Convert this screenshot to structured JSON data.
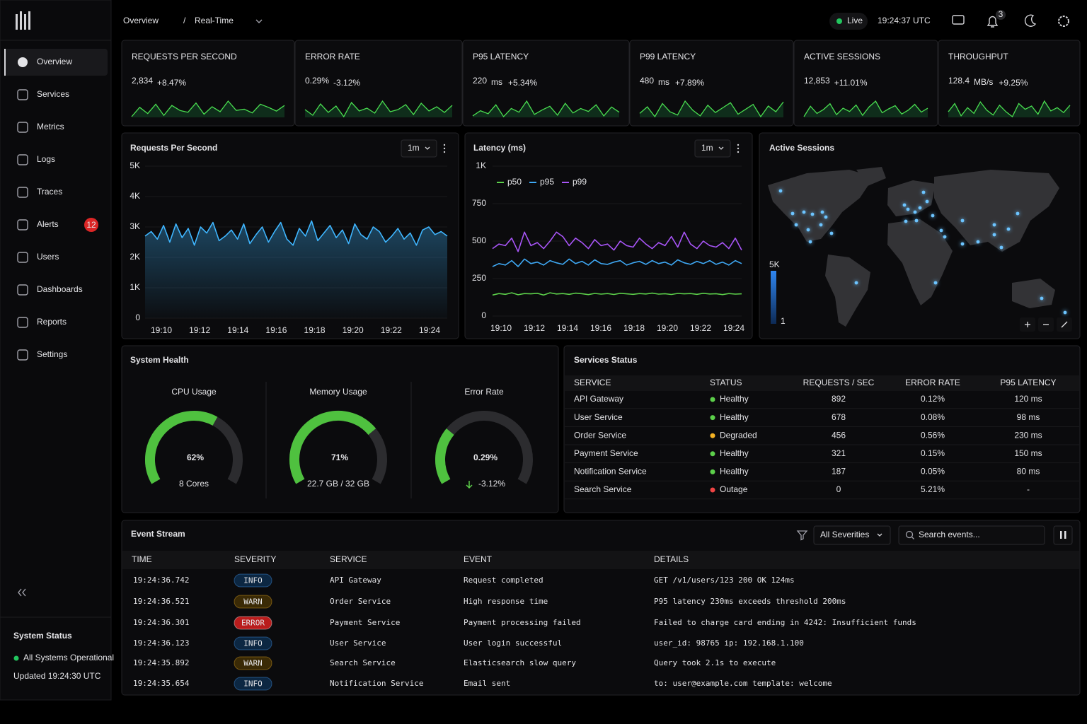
{
  "sidebar": {
    "nav": [
      "Overview",
      "Services",
      "Metrics",
      "Logs",
      "Traces",
      "Alerts",
      "Users",
      "Dashboards",
      "Reports",
      "Settings"
    ],
    "alerts_badge": 12,
    "status_title": "System Status",
    "status_text": "All Systems Operational",
    "updated": "Updated 19:24:30 UTC"
  },
  "header": {
    "title": "Overview",
    "separator": "/",
    "view": "Real-Time",
    "live": "Live",
    "time": "19:24:37 UTC",
    "notifications": 3
  },
  "kpis": [
    {
      "label": "REQUESTS PER SECOND",
      "value": "2,834",
      "change": "+8.47%",
      "change_color": "#5ccf4a",
      "sparkline": [
        40,
        55,
        45,
        60,
        42,
        58,
        50,
        47,
        62,
        44,
        56,
        48,
        65,
        50,
        52,
        46,
        60,
        55,
        49,
        58
      ]
    },
    {
      "label": "ERROR RATE",
      "value": "0.29%",
      "change": "-3.12%",
      "change_color": "#5ccf4a",
      "sparkline": [
        50,
        42,
        58,
        46,
        55,
        40,
        60,
        48,
        52,
        45,
        62,
        47,
        50,
        57,
        43,
        59,
        48,
        54,
        46,
        56
      ]
    },
    {
      "label": "P95 LATENCY",
      "value": "220",
      "unit": "ms",
      "change": "+5.34%",
      "change_color": "#ef4444",
      "sparkline": [
        45,
        52,
        48,
        60,
        44,
        55,
        50,
        65,
        47,
        53,
        58,
        46,
        62,
        49,
        55,
        51,
        60,
        45,
        57,
        50
      ]
    },
    {
      "label": "P99 LATENCY",
      "value": "480",
      "unit": "ms",
      "change": "+7.89%",
      "change_color": "#ef4444",
      "sparkline": [
        48,
        56,
        44,
        60,
        50,
        46,
        63,
        52,
        45,
        58,
        49,
        55,
        61,
        47,
        53,
        59,
        44,
        57,
        50,
        62
      ]
    },
    {
      "label": "ACTIVE SESSIONS",
      "value": "12,853",
      "change": "+11.01%",
      "change_color": "#5ccf4a",
      "sparkline": [
        42,
        58,
        47,
        53,
        62,
        45,
        55,
        50,
        60,
        44,
        57,
        66,
        48,
        54,
        59,
        46,
        52,
        61,
        49,
        55
      ]
    },
    {
      "label": "THROUGHPUT",
      "value": "128.4",
      "unit": "MB/s",
      "change": "+9.25%",
      "change_color": "#5ccf4a",
      "sparkline": [
        50,
        60,
        45,
        55,
        48,
        62,
        52,
        46,
        58,
        50,
        44,
        60,
        53,
        57,
        47,
        63,
        51,
        55,
        49,
        58
      ]
    }
  ],
  "charts": {
    "rps": {
      "type": "line",
      "title": "Requests Per Second",
      "interval": "1m",
      "color": "#3fb6ff",
      "ylim": [
        0,
        5000
      ],
      "yticks": [
        0,
        {
          "value": 1000,
          "label": "1K"
        },
        {
          "value": 2000,
          "label": "2K"
        },
        {
          "value": 3000,
          "label": "3K"
        },
        {
          "value": 4000,
          "label": "4K"
        },
        {
          "value": 5000,
          "label": "5K"
        }
      ],
      "xticks": [
        "19:10",
        "19:12",
        "19:14",
        "19:16",
        "19:18",
        "19:20",
        "19:22",
        "19:24"
      ],
      "values": [
        2700,
        2850,
        2600,
        3050,
        2500,
        3100,
        2650,
        2950,
        2400,
        3000,
        2800,
        3150,
        2550,
        2700,
        2900,
        2600,
        3100,
        2450,
        2750,
        3000,
        2500,
        2850,
        3150,
        2600,
        2400,
        2950,
        2700,
        3200,
        2550,
        2800,
        3050,
        2650,
        2900,
        2450,
        3100,
        2750,
        2600,
        3000,
        2850,
        2500,
        2700,
        2950,
        2600,
        2800,
        2400,
        2900,
        3000,
        2750,
        2850,
        2700
      ]
    },
    "latency": {
      "type": "line",
      "title": "Latency (ms)",
      "interval": "1m",
      "ylim": [
        0,
        1000
      ],
      "yticks": [
        0,
        250,
        500,
        750,
        {
          "value": 1000,
          "label": "1K"
        }
      ],
      "xticks": [
        "19:10",
        "19:12",
        "19:14",
        "19:16",
        "19:18",
        "19:20",
        "19:22",
        "19:24"
      ],
      "series": [
        {
          "name": "p50",
          "color": "#5ccf4a",
          "values": [
            140,
            150,
            145,
            155,
            142,
            150,
            148,
            152,
            140,
            155,
            147,
            150,
            145,
            153,
            149,
            143,
            151,
            146,
            150,
            144,
            152,
            148,
            145,
            150,
            147,
            153,
            146,
            149,
            144,
            151,
            148,
            150,
            145,
            152,
            147,
            149,
            143,
            150,
            146,
            148
          ]
        },
        {
          "name": "p95",
          "color": "#3fa9f5",
          "values": [
            330,
            350,
            340,
            370,
            330,
            380,
            350,
            360,
            340,
            370,
            355,
            345,
            380,
            350,
            365,
            340,
            375,
            350,
            345,
            360,
            370,
            340,
            355,
            365,
            345,
            370,
            350,
            360,
            340,
            375,
            355,
            345,
            365,
            350,
            370,
            345,
            360,
            340,
            370,
            350
          ]
        },
        {
          "name": "p99",
          "color": "#a855f7",
          "values": [
            450,
            480,
            470,
            520,
            430,
            560,
            470,
            490,
            450,
            500,
            560,
            530,
            470,
            520,
            490,
            450,
            510,
            470,
            480,
            440,
            500,
            470,
            460,
            520,
            480,
            450,
            490,
            470,
            530,
            460,
            560,
            480,
            450,
            500,
            470,
            460,
            490,
            450,
            520,
            440
          ]
        }
      ]
    }
  },
  "map": {
    "title": "Active Sessions",
    "legend_max": "5K",
    "legend_min": 1
  },
  "health": {
    "title": "System Health",
    "gauges": [
      {
        "label": "CPU Usage",
        "value": 62,
        "value_label": "62%",
        "detail": "8 Cores",
        "range": [
          0,
          100
        ],
        "color": "#ffffff",
        "detail_color": "#d4d4d8"
      },
      {
        "label": "Memory Usage",
        "value": 71,
        "value_label": "71%",
        "detail": "22.7 GB / 32 GB",
        "range": [
          0,
          100
        ],
        "color": "#ffffff",
        "detail_color": "#d4d4d8"
      },
      {
        "label": "Error Rate",
        "value": 0.29,
        "value_label": "0.29%",
        "detail": "-3.12%",
        "range": [
          0,
          1
        ],
        "color": "#5ccf4a",
        "detail_color": "#5ccf4a"
      }
    ]
  },
  "services": {
    "title": "Services Status",
    "columns": [
      "SERVICE",
      "STATUS",
      "REQUESTS / SEC",
      "ERROR RATE",
      "P95 LATENCY"
    ],
    "rows": [
      [
        "API Gateway",
        "Healthy",
        "892",
        "0.12%",
        "120 ms"
      ],
      [
        "User Service",
        "Healthy",
        "678",
        "0.08%",
        "98 ms"
      ],
      [
        "Order Service",
        "Degraded",
        "456",
        "0.56%",
        "230 ms"
      ],
      [
        "Payment Service",
        "Healthy",
        "321",
        "0.15%",
        "150 ms"
      ],
      [
        "Notification Service",
        "Healthy",
        "187",
        "0.05%",
        "80 ms"
      ],
      [
        "Search Service",
        "Outage",
        "0",
        "5.21%",
        "-"
      ]
    ],
    "status_colors": {
      "Healthy": "#5ccf4a",
      "Degraded": "#f5b323",
      "Outage": "#ef4444"
    },
    "latency_colors": [
      "#5ccf4a",
      "#5ccf4a",
      "#f5b323",
      "#5ccf4a",
      "#5ccf4a",
      "#d4d4d8"
    ]
  },
  "events": {
    "title": "Event Stream",
    "filter": "All Severities",
    "search": "Search events...",
    "columns": [
      "TIME",
      "SEVERITY",
      "SERVICE",
      "EVENT",
      "DETAILS"
    ],
    "rows": [
      [
        "19:24:36.742",
        "INFO",
        "API Gateway",
        "Request completed",
        "GET /v1/users/123 200 OK 124ms"
      ],
      [
        "19:24:36.521",
        "WARN",
        "Order Service",
        "High response time",
        "P95 latency 230ms exceeds threshold 200ms"
      ],
      [
        "19:24:36.301",
        "ERROR",
        "Payment Service",
        "Payment processing failed",
        "Failed to charge card ending in 4242: Insufficient funds"
      ],
      [
        "19:24:36.123",
        "INFO",
        "User Service",
        "User login successful",
        "user_id: 98765 ip: 192.168.1.100"
      ],
      [
        "19:24:35.892",
        "WARN",
        "Search Service",
        "Elasticsearch slow query",
        "Query took 2.1s to execute"
      ],
      [
        "19:24:35.654",
        "INFO",
        "Notification Service",
        "Email sent",
        "to: user@example.com template: welcome"
      ]
    ],
    "severity_colors": {
      "INFO": [
        "#0c2742",
        "#4aa3ff"
      ],
      "WARN": [
        "#3a2a06",
        "#f5b323"
      ],
      "ERROR": [
        "#b91c1c",
        "#ffffff"
      ]
    }
  }
}
